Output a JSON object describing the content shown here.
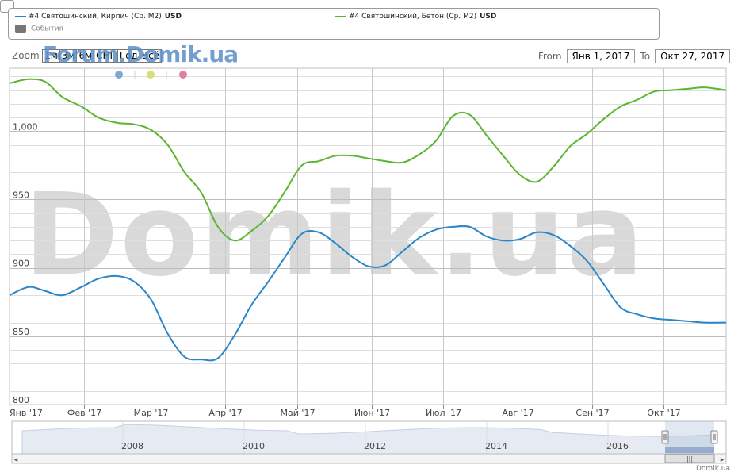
{
  "legend": {
    "series1": {
      "label": "#4 Святошинский, Кирпич (Ср. М2)",
      "unit": "USD",
      "color": "#2a86c8"
    },
    "series2": {
      "label": "#4 Святошинский, Бетон (Ср. М2)",
      "unit": "USD",
      "color": "#5cb531"
    },
    "events": "События"
  },
  "zoom": {
    "label": "Zoom",
    "buttons": [
      "1м",
      "3м",
      "6м",
      "СНГ",
      "Год",
      "Всё"
    ]
  },
  "range": {
    "from_label": "From",
    "from_value": "Янв 1, 2017",
    "to_label": "To",
    "to_value": "Окт 27, 2017"
  },
  "flag_colors": [
    "#7fa7d4",
    "#d8df78",
    "#df7fa3"
  ],
  "watermark_small": "Forum.Domik.ua",
  "watermark": "Domik.ua",
  "credit": "Domik.ua",
  "chart_data": {
    "type": "line",
    "xlabel": "",
    "ylabel": "",
    "ylim": [
      800,
      1046
    ],
    "x_ticks": [
      "Янв '17",
      "Фев '17",
      "Мар '17",
      "Апр '17",
      "Май '17",
      "Июн '17",
      "Июл '17",
      "Авг '17",
      "Сен '17",
      "Окт '17"
    ],
    "y_ticks": [
      "800",
      "850",
      "900",
      "950",
      "1,000"
    ],
    "grid": true,
    "x_days": [
      0,
      8,
      15,
      22,
      30,
      37,
      45,
      52,
      59,
      66,
      73,
      80,
      87,
      94,
      101,
      108,
      115,
      122,
      129,
      136,
      143,
      150,
      157,
      164,
      171,
      178,
      185,
      192,
      199,
      206,
      213,
      220,
      227,
      234,
      241,
      248,
      255,
      262,
      269,
      276,
      283,
      290,
      299
    ],
    "series": [
      {
        "name": "#4 Святошинский, Кирпич (Ср. М2)",
        "color": "#2a86c8",
        "values": [
          880,
          886,
          883,
          880,
          886,
          892,
          894,
          890,
          877,
          852,
          835,
          833,
          834,
          851,
          873,
          890,
          908,
          925,
          926,
          918,
          908,
          901,
          902,
          912,
          922,
          928,
          930,
          930,
          923,
          920,
          921,
          926,
          924,
          916,
          905,
          888,
          871,
          866,
          863,
          862,
          861,
          860,
          860
        ]
      },
      {
        "name": "#4 Святошинский, Бетон (Ср. М2)",
        "color": "#5cb531",
        "values": [
          1035,
          1038,
          1036,
          1025,
          1018,
          1010,
          1006,
          1005,
          1001,
          990,
          970,
          955,
          930,
          920,
          927,
          938,
          956,
          975,
          978,
          982,
          982,
          980,
          978,
          977,
          983,
          993,
          1011,
          1012,
          997,
          982,
          968,
          963,
          974,
          989,
          998,
          1009,
          1018,
          1023,
          1029,
          1030,
          1031,
          1032,
          1030
        ]
      }
    ]
  },
  "navigator": {
    "year_labels": [
      "2008",
      "2010",
      "2012",
      "2014",
      "2016"
    ],
    "scroll_left": "◂",
    "scroll_right": "▸",
    "scroll_grip": "|||"
  }
}
